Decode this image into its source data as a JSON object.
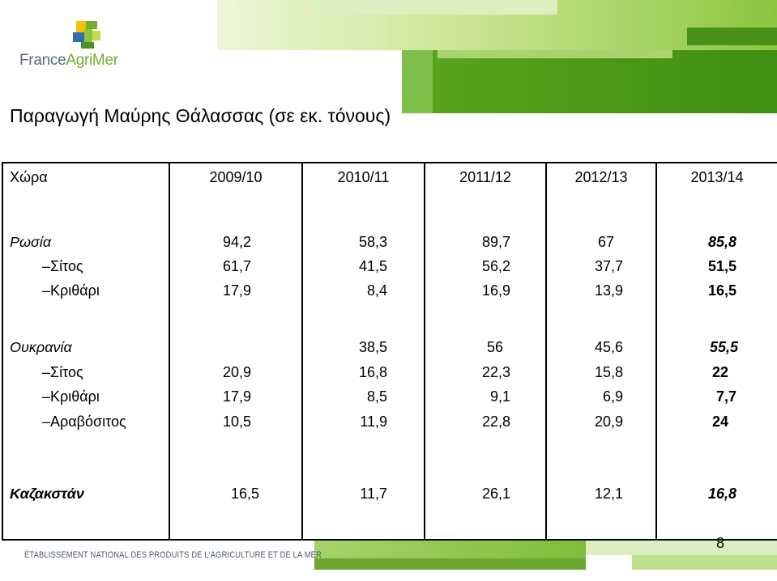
{
  "logo": {
    "text_a": "France",
    "text_b": "AgriMer"
  },
  "title": "Παραγωγή Μαύρης Θάλασσας (σε εκ. τόνους)",
  "table": {
    "headers": [
      "Χώρα",
      "2009/10",
      "2010/11",
      "2011/12",
      "2012/13",
      "2013/14"
    ],
    "rows": [
      {
        "label": "Ρωσία",
        "values": [
          "94,2",
          "58,3",
          "89,7",
          "67",
          "85,8"
        ]
      },
      {
        "label": "–Σίτος",
        "values": [
          "61,7",
          "41,5",
          "56,2",
          "37,7",
          "51,5"
        ]
      },
      {
        "label": "–Κριθάρι",
        "values": [
          "17,9",
          "8,4",
          "16,9",
          "13,9",
          "16,5"
        ]
      },
      {
        "label": "Ουκρανία",
        "values": [
          "",
          "38,5",
          "56",
          "45,6",
          "55,5"
        ]
      },
      {
        "label": "–Σίτος",
        "values": [
          "20,9",
          "16,8",
          "22,3",
          "15,8",
          "22"
        ]
      },
      {
        "label": "–Κριθάρι",
        "values": [
          "17,9",
          "8,5",
          "9,1",
          "6,9",
          "7,7"
        ]
      },
      {
        "label": "–Αραβόσιτος",
        "values": [
          "10,5",
          "11,9",
          "22,8",
          "20,9",
          "24"
        ]
      },
      {
        "label": "Καζακστάν",
        "values": [
          "16,5",
          "11,7",
          "26,1",
          "12,1",
          "16,8"
        ]
      }
    ]
  },
  "footer": {
    "text": "ÉTABLISSEMENT NATIONAL DES PRODUITS DE L'AGRICULTURE ET DE LA MER",
    "page_number": "8"
  },
  "colors": {
    "green_dark": "#3f8f12",
    "green_light": "#cfe79a",
    "logo_gray": "#5a6b7a"
  }
}
